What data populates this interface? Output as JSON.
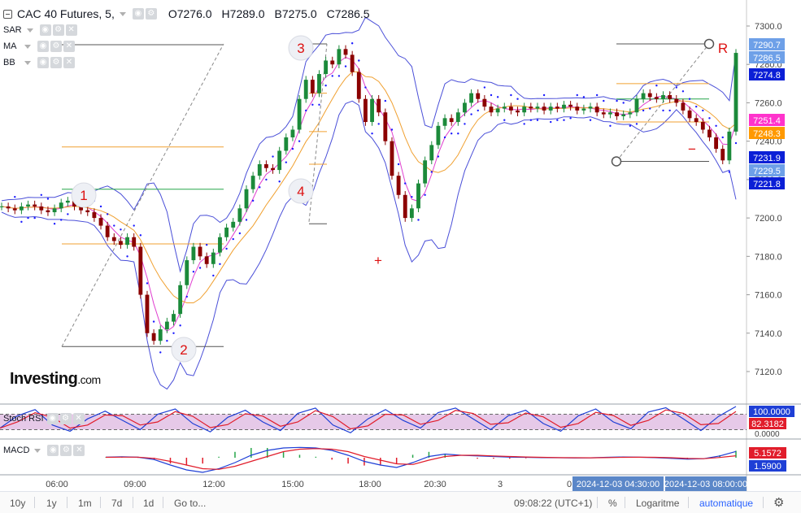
{
  "header": {
    "title": "CAC 40 Futures, 5,",
    "open": "O7276.0",
    "high": "H7289.0",
    "low": "B7275.0",
    "close": "C7286.5"
  },
  "indicators": [
    {
      "name": "SAR"
    },
    {
      "name": "MA"
    },
    {
      "name": "BB"
    }
  ],
  "subpanels": {
    "stoch": {
      "name": "Stoch RSI",
      "val1": "100.0000",
      "val2": "82.3182",
      "color1": "#1e3fd6",
      "color2": "#e11d2b"
    },
    "macd": {
      "name": "MACD",
      "val1": "5.1572",
      "val2": "1.5900",
      "color1": "#e11d2b",
      "color2": "#1e3fd6"
    }
  },
  "logo": {
    "brand": "Investing",
    "suffix": ".com"
  },
  "bottombar": {
    "ranges": [
      "10y",
      "1y",
      "1m",
      "7d",
      "1d"
    ],
    "goto": "Go to...",
    "clock": "09:08:22 (UTC+1)",
    "percent": "%",
    "log": "Logaritme",
    "auto": "automatique"
  },
  "colors": {
    "candle_up": "#26a69a",
    "candle_up_fill": "#1b8a3a",
    "candle_down": "#8b0000",
    "bollinger": "#4a4fd8",
    "ma_fast": "#e040d0",
    "ma_slow": "#f0a030",
    "sar": "#1a1aff",
    "annotation": "#dd1111"
  },
  "chart_data": {
    "type": "candlestick",
    "instrument": "CAC 40 Futures",
    "interval": "5",
    "y_axis": {
      "min": 7110,
      "max": 7310,
      "ticks": [
        7300.0,
        7280.0,
        7260.0,
        7240.0,
        7220.0,
        7200.0,
        7180.0,
        7160.0,
        7140.0,
        7120.0
      ]
    },
    "x_axis": {
      "ticks": [
        "06:00",
        "09:00",
        "12:00",
        "15:00",
        "18:00",
        "20:30",
        "3",
        "0"
      ]
    },
    "price_labels": [
      {
        "value": "7290.7",
        "bg": "#6ea0e8",
        "fg": "#ffffff"
      },
      {
        "value": "7286.5",
        "bg": "#6ea0e8",
        "fg": "#ffffff"
      },
      {
        "value": "7274.8",
        "bg": "#0b1fd6",
        "fg": "#ffffff"
      },
      {
        "value": "7251.4",
        "bg": "#ff33cc",
        "fg": "#ffffff"
      },
      {
        "value": "7248.3",
        "bg": "#ff9900",
        "fg": "#ffffff"
      },
      {
        "value": "7231.9",
        "bg": "#0b1fd6",
        "fg": "#ffffff"
      },
      {
        "value": "7229.5",
        "bg": "#6ea0e8",
        "fg": "#ffffff"
      },
      {
        "value": "7221.8",
        "bg": "#0b1fd6",
        "fg": "#ffffff"
      }
    ],
    "close_path": [
      7206,
      7205,
      7204,
      7206,
      7207,
      7206,
      7204,
      7203,
      7205,
      7208,
      7209,
      7206,
      7204,
      7203,
      7200,
      7196,
      7190,
      7188,
      7186,
      7190,
      7185,
      7160,
      7140,
      7136,
      7142,
      7146,
      7150,
      7165,
      7178,
      7185,
      7180,
      7176,
      7182,
      7190,
      7195,
      7198,
      7205,
      7215,
      7222,
      7228,
      7226,
      7225,
      7235,
      7242,
      7246,
      7262,
      7272,
      7265,
      7275,
      7282,
      7280,
      7288,
      7285,
      7276,
      7262,
      7250,
      7262,
      7255,
      7240,
      7222,
      7212,
      7200,
      7205,
      7218,
      7230,
      7238,
      7248,
      7252,
      7250,
      7255,
      7260,
      7265,
      7262,
      7258,
      7255,
      7257,
      7258,
      7256,
      7255,
      7258,
      7257,
      7258,
      7256,
      7258,
      7257,
      7259,
      7258,
      7256,
      7257,
      7258,
      7255,
      7254,
      7255,
      7253,
      7254,
      7255,
      7262,
      7265,
      7263,
      7262,
      7264,
      7262,
      7260,
      7256,
      7252,
      7250,
      7246,
      7242,
      7236,
      7230,
      7245,
      7286
    ],
    "fib_levels": {
      "top_line": 7290.7,
      "levels": [
        7237.0,
        7215.0,
        7186.5,
        7133.0
      ],
      "colors": [
        "#f0a030",
        "#26a64a",
        "#f0a030",
        "#555555"
      ]
    },
    "annotations": [
      "1",
      "2",
      "3",
      "4",
      "R",
      "−",
      "+"
    ],
    "stoch_rsi": {
      "upper": 80,
      "lower": 20,
      "values": [
        30,
        70,
        90,
        40,
        20,
        60,
        85,
        55,
        25,
        75,
        92,
        45,
        18,
        65,
        88,
        50,
        22,
        78,
        95,
        40,
        15,
        60,
        90,
        55,
        30,
        80,
        95,
        60,
        25,
        70,
        88,
        45,
        20,
        70,
        92,
        50,
        28,
        82,
        96,
        60,
        22,
        68,
        100
      ]
    },
    "macd": {
      "values": [
        0.5,
        0.8,
        0.4,
        -1.5,
        -6,
        -10,
        -12,
        -9,
        -4,
        2,
        6,
        8,
        8.5,
        8,
        6,
        2,
        -3,
        -6,
        -8,
        -4,
        1,
        3,
        2,
        1.5,
        1,
        0.5,
        0.3,
        0.1,
        0,
        -0.2,
        -0.1,
        0.3,
        0.6,
        0.4,
        0.1,
        -0.5,
        -1.2,
        -0.8,
        1.5,
        5.1572
      ],
      "signal": [
        0.3,
        0.5,
        0.5,
        -0.5,
        -3,
        -6,
        -9,
        -9.5,
        -7,
        -3,
        1,
        5,
        7,
        7.5,
        7,
        5,
        1,
        -2,
        -5,
        -5.5,
        -2,
        1,
        2,
        2,
        1.5,
        1,
        0.6,
        0.3,
        0.1,
        0,
        -0.1,
        0.1,
        0.3,
        0.4,
        0.3,
        0,
        -0.6,
        -0.8,
        0.2,
        1.59
      ]
    }
  }
}
